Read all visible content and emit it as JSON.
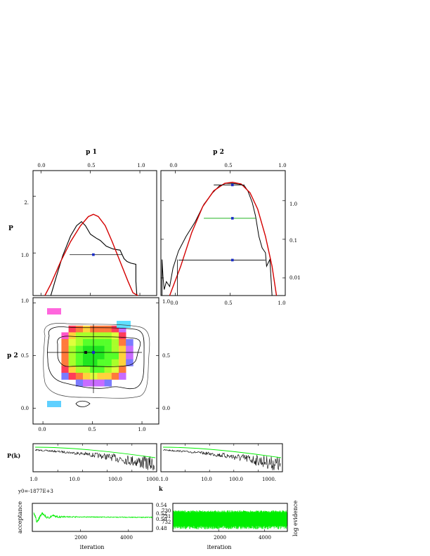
{
  "chart_data": [
    {
      "type": "line",
      "panel": "marginal-p1",
      "title": "p 1",
      "ylabel": "P",
      "x_ticks": [
        "0.0",
        "0.5",
        "1.0"
      ],
      "y_ticks": [
        "1.0",
        "2."
      ],
      "xlim": [
        -0.08,
        1.17
      ],
      "ylim": [
        0.25,
        2.45
      ],
      "series": [
        {
          "style": "black-steps",
          "x": [
            0.1,
            0.15,
            0.22,
            0.3,
            0.36,
            0.41,
            0.45,
            0.5,
            0.56,
            0.6,
            0.66,
            0.73,
            0.8,
            0.84,
            0.87,
            0.91,
            0.96,
            0.96,
            0.97
          ],
          "y": [
            0.25,
            0.55,
            0.95,
            1.3,
            1.48,
            1.55,
            1.48,
            1.33,
            1.26,
            1.22,
            1.12,
            1.07,
            1.05,
            0.9,
            0.85,
            0.82,
            0.8,
            0.5,
            0.25
          ]
        },
        {
          "style": "red",
          "x": [
            0.04,
            0.1,
            0.2,
            0.3,
            0.4,
            0.48,
            0.53,
            0.58,
            0.65,
            0.72,
            0.8,
            0.88,
            0.93,
            0.98
          ],
          "y": [
            0.25,
            0.45,
            0.85,
            1.2,
            1.48,
            1.64,
            1.68,
            1.64,
            1.48,
            1.2,
            0.85,
            0.5,
            0.3,
            0.25
          ]
        }
      ],
      "interval": {
        "x0": 0.29,
        "x1": 0.82,
        "y": 0.97,
        "marker_x": 0.53
      }
    },
    {
      "type": "line",
      "panel": "marginal-p2",
      "title": "p 2",
      "x_ticks": [
        "0.0",
        "0.5",
        "1.0"
      ],
      "y_ticks": [
        "1.0",
        "0.1",
        "0.01"
      ],
      "y_scale": "log",
      "xlim": [
        -0.13,
        1.0
      ],
      "ylim": [
        0.0035,
        6.0
      ],
      "series": [
        {
          "style": "black-steps",
          "x": [
            -0.12,
            -0.12,
            -0.11,
            -0.1,
            -0.08,
            -0.05,
            -0.02,
            0.03,
            0.1,
            0.18,
            0.26,
            0.34,
            0.4,
            0.46,
            0.52,
            0.58,
            0.63,
            0.66,
            0.7,
            0.73,
            0.76,
            0.79,
            0.82,
            0.83,
            0.86,
            0.88
          ],
          "y": [
            0.0035,
            0.03,
            0.01,
            0.005,
            0.008,
            0.006,
            0.018,
            0.05,
            0.12,
            0.28,
            0.8,
            1.6,
            2.4,
            2.8,
            2.8,
            2.7,
            2.4,
            1.8,
            0.9,
            0.4,
            0.12,
            0.06,
            0.045,
            0.02,
            0.03,
            0.0035
          ]
        },
        {
          "style": "red",
          "x": [
            -0.05,
            0.05,
            0.15,
            0.25,
            0.35,
            0.45,
            0.52,
            0.6,
            0.68,
            0.75,
            0.82,
            0.88,
            0.92
          ],
          "y": [
            0.0035,
            0.02,
            0.15,
            0.7,
            1.8,
            2.8,
            3.0,
            2.7,
            1.6,
            0.6,
            0.12,
            0.02,
            0.0035
          ]
        }
      ],
      "intervals": [
        {
          "x0": 0.35,
          "x1": 0.63,
          "y": 2.55,
          "marker_x": 0.52,
          "color": "#000000"
        },
        {
          "x0": 0.26,
          "x1": 0.73,
          "y": 0.35,
          "marker_x": 0.52,
          "color": "#00aa00"
        },
        {
          "x0": 0.03,
          "x1": 0.82,
          "y": 0.029,
          "marker_x": 0.52,
          "color": "#000000"
        }
      ]
    },
    {
      "type": "heatmap",
      "panel": "joint-p1-p2",
      "ylabel": "p 2",
      "x_ticks": [
        "0.0",
        "0.5",
        "1.0"
      ],
      "y_ticks": [
        "0.0",
        "0.5",
        "1.0"
      ],
      "right_ticks": [
        "0.0",
        "0.5",
        "1.0"
      ],
      "xlim": [
        -0.1,
        1.17
      ],
      "ylim": [
        -0.15,
        1.05
      ],
      "legend": "none"
    },
    {
      "type": "line",
      "panel": "power-spectrum",
      "ylabel": "P(k)",
      "xlabel": "k",
      "x_scale": "log",
      "x_ticks_left": [
        "1.0",
        "10.0",
        "100.0",
        "1000."
      ],
      "x_ticks_right": [
        "1.0",
        "10.0",
        "100.0",
        "1000."
      ]
    },
    {
      "type": "line",
      "panel": "acceptance-trace",
      "ylabel": "acceptance",
      "xlabel": "iteration",
      "offset_label": "y0=-1877E+3",
      "x_ticks": [
        "2000",
        "4000"
      ],
      "y_ticks": [
        "0.54",
        "0.52",
        "0.50",
        "0.48"
      ],
      "xlim": [
        0,
        5000
      ],
      "ylim": [
        0.47,
        0.545
      ]
    },
    {
      "type": "line",
      "panel": "log-evidence-trace",
      "ylabel": "log evidence",
      "xlabel": "iteration",
      "x_ticks": [
        "2000",
        "4000"
      ],
      "y_ticks": [
        "730",
        "731",
        "732"
      ],
      "xlim": [
        0,
        5000
      ]
    }
  ],
  "colors": {
    "red_curve": "#d40000",
    "green": "#00ee00",
    "marker": "#1a2cc8",
    "contour": "#000000"
  }
}
